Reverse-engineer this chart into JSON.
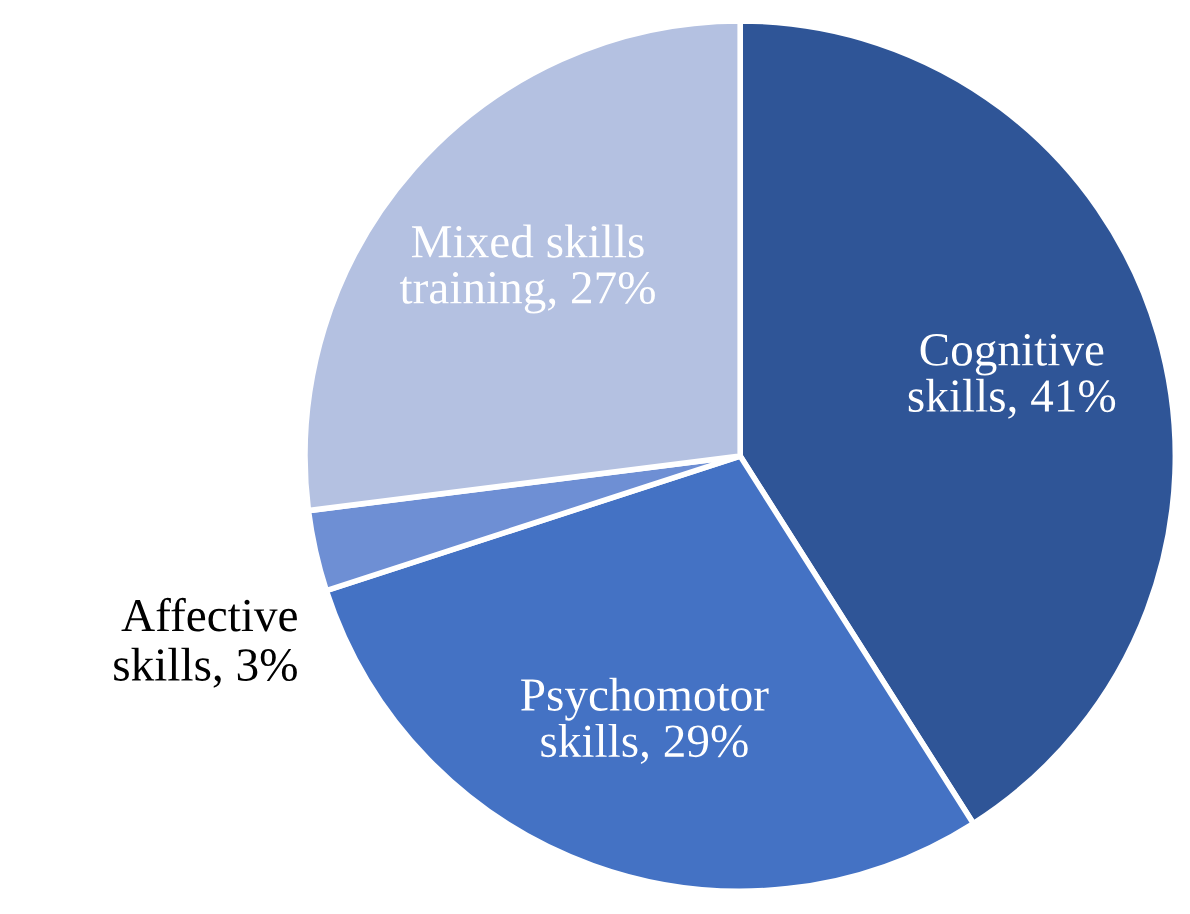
{
  "chart_data": {
    "type": "pie",
    "categories": [
      "Cognitive\nskills",
      "Psychomotor\nskills",
      "Affective\nskills",
      "Mixed skills\ntraining"
    ],
    "values": [
      41,
      29,
      3,
      27
    ],
    "value_labels": [
      "41%",
      "29%",
      "3%",
      "27%"
    ],
    "colors": [
      "#2f5597",
      "#4472c4",
      "#6e8fd4",
      "#b4c1e1"
    ],
    "legend": false
  }
}
